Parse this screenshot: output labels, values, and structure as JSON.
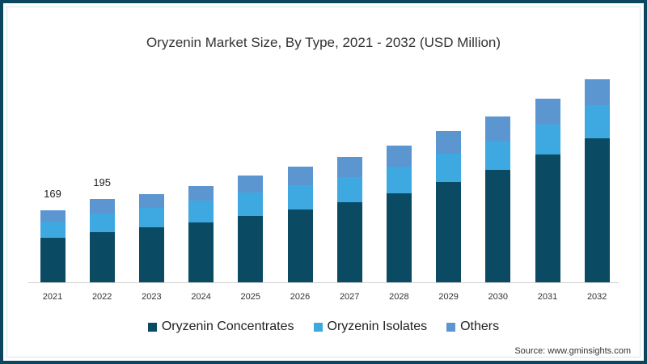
{
  "title": "Oryzenin Market Size, By Type, 2021 - 2032 (USD Million)",
  "source": "Source: www.gminsights.com",
  "colors": {
    "concentrates": "#0a4a63",
    "isolates": "#3ea9e0",
    "others": "#5b96d1",
    "border": "#0a4660"
  },
  "legend": [
    {
      "label": "Oryzenin Concentrates",
      "color": "#0a4a63"
    },
    {
      "label": "Oryzenin Isolates",
      "color": "#3ea9e0"
    },
    {
      "label": "Others",
      "color": "#5b96d1"
    }
  ],
  "chart_data": {
    "type": "bar",
    "stacked": true,
    "title": "Oryzenin Market Size, By Type, 2021 - 2032 (USD Million)",
    "xlabel": "",
    "ylabel": "USD Million",
    "categories": [
      "2021",
      "2022",
      "2023",
      "2024",
      "2025",
      "2026",
      "2027",
      "2028",
      "2029",
      "2030",
      "2031",
      "2032"
    ],
    "series": [
      {
        "name": "Oryzenin Concentrates",
        "values": [
          104,
          117,
          129,
          141,
          155,
          170,
          188,
          208,
          235,
          264,
          300,
          337
        ]
      },
      {
        "name": "Oryzenin Isolates",
        "values": [
          38,
          44,
          46,
          50,
          55,
          58,
          59,
          64,
          67,
          68,
          70,
          78
        ]
      },
      {
        "name": "Others",
        "values": [
          27,
          34,
          31,
          35,
          40,
          43,
          47,
          49,
          53,
          57,
          61,
          62
        ]
      }
    ],
    "totals": [
      169,
      195,
      206,
      226,
      250,
      271,
      294,
      321,
      355,
      389,
      431,
      477
    ],
    "data_labels": {
      "2021": "169",
      "2022": "195"
    },
    "legend_position": "bottom",
    "grid": false
  }
}
